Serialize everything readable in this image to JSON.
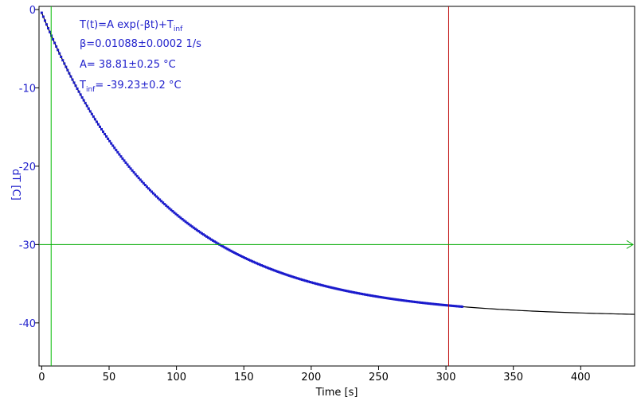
{
  "chart_data": {
    "type": "scatter",
    "title": "",
    "xlabel": "Time [s]",
    "ylabel": "dT [C]",
    "xlim": [
      -2,
      440
    ],
    "ylim": [
      -45.5,
      0.4
    ],
    "xticks": [
      0,
      50,
      100,
      150,
      200,
      250,
      300,
      350,
      400
    ],
    "yticks": [
      0,
      -10,
      -20,
      -30,
      -40
    ],
    "grid": false,
    "legend": "none",
    "colors": {
      "axis_text": "#2222cc",
      "data": "#1a1acc",
      "fit": "#000000",
      "cursor_vertical_green": "#00bb00",
      "cursor_horizontal_green": "#00aa00",
      "cursor_red": "#bb0000"
    },
    "annotations": {
      "formula_prefix": "T(t)=A exp(-βt)+T",
      "formula_sub": "inf",
      "beta": "β=0.01088±0.0002 1/s",
      "amplitude": "A= 38.81±0.25 °C",
      "tinf_prefix": "T",
      "tinf_sub": "inf",
      "tinf_value": "= -39.23±0.2 °C"
    },
    "fit": {
      "model": "T(t)=A exp(-βt)+T_inf",
      "A": 38.81,
      "beta": 0.01088,
      "T_inf": -39.23,
      "x_range": [
        0,
        440
      ]
    },
    "series": [
      {
        "kind": "measured",
        "x_range": [
          0,
          312
        ],
        "sample_step": 1.2
      }
    ],
    "cursors": {
      "vertical_green_x": 7,
      "vertical_red_x": 302,
      "horizontal_green_y": -30
    }
  }
}
